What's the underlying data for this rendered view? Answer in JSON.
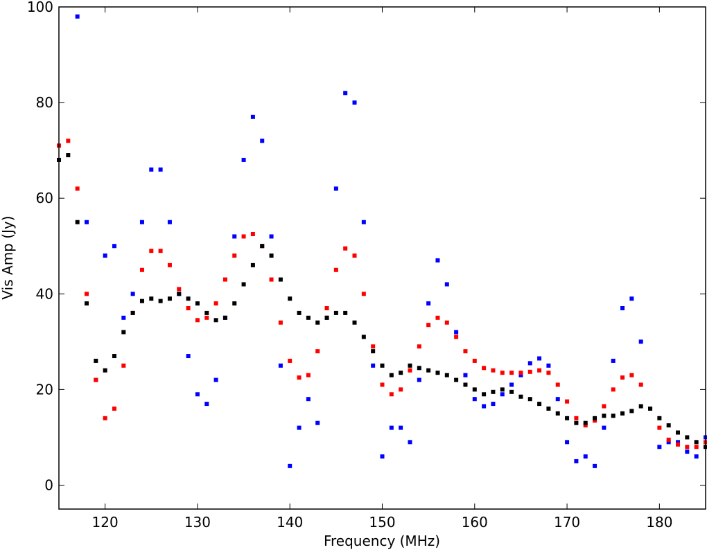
{
  "chart_data": {
    "type": "scatter",
    "xlabel": "Frequency (MHz)",
    "ylabel": "Vis Amp (Jy)",
    "xlim": [
      115,
      185
    ],
    "ylim": [
      -5,
      100
    ],
    "xticks": [
      120,
      130,
      140,
      150,
      160,
      170,
      180
    ],
    "yticks": [
      0,
      20,
      40,
      60,
      80,
      100
    ],
    "x": [
      115,
      116,
      117,
      118,
      119,
      120,
      121,
      122,
      123,
      124,
      125,
      126,
      127,
      128,
      129,
      130,
      131,
      132,
      133,
      134,
      135,
      136,
      137,
      138,
      139,
      140,
      141,
      142,
      143,
      144,
      145,
      146,
      147,
      148,
      149,
      150,
      151,
      152,
      153,
      154,
      155,
      156,
      157,
      158,
      159,
      160,
      161,
      162,
      163,
      164,
      165,
      166,
      167,
      168,
      169,
      170,
      171,
      172,
      173,
      174,
      175,
      176,
      177,
      178,
      179,
      180,
      181,
      182,
      183,
      184,
      185
    ],
    "series": [
      {
        "color": "#0000ff",
        "values": [
          null,
          null,
          98,
          55,
          22,
          48,
          50,
          35,
          40,
          55,
          66,
          66,
          55,
          40,
          27,
          19,
          17,
          22,
          35,
          52,
          68,
          77,
          72,
          52,
          25,
          4,
          12,
          18,
          13,
          35,
          62,
          82,
          80,
          55,
          25,
          6,
          12,
          12,
          9,
          22,
          38,
          47,
          42,
          32,
          23,
          18,
          16.5,
          17,
          19,
          21,
          23,
          25.5,
          26.5,
          25,
          18,
          9,
          5,
          6,
          4,
          12,
          26,
          37,
          39,
          30,
          16,
          8,
          9,
          9,
          7,
          6,
          10
        ]
      },
      {
        "color": "#ff0000",
        "values": [
          71,
          72,
          62,
          40,
          22,
          14,
          16,
          25,
          36,
          45,
          49,
          49,
          46,
          41,
          37,
          34.5,
          35,
          38,
          43,
          48,
          52,
          52.5,
          50,
          43,
          34,
          26,
          22.5,
          23,
          28,
          37,
          45,
          49.5,
          48,
          40,
          29,
          21,
          19,
          20,
          24,
          29,
          33.5,
          35,
          34,
          31,
          28,
          26,
          24.5,
          24,
          23.5,
          23.5,
          23.5,
          23.7,
          24,
          23.5,
          21,
          17.5,
          14,
          12.5,
          13.5,
          16.5,
          20,
          22.5,
          23,
          21,
          16,
          12,
          9.5,
          8.5,
          8,
          8,
          9
        ]
      },
      {
        "color": "#000000",
        "values": [
          68,
          69,
          55,
          38,
          26,
          24,
          27,
          32,
          36,
          38.5,
          39,
          38.5,
          39,
          40,
          39,
          38,
          36,
          34.5,
          35,
          38,
          42,
          46,
          50,
          48,
          43,
          39,
          36,
          35,
          34,
          35,
          36,
          36,
          34,
          31,
          28,
          25,
          23,
          23.5,
          25,
          24.5,
          24,
          23.5,
          23,
          22,
          21,
          20,
          19,
          19.5,
          20,
          19.5,
          18.5,
          18,
          17,
          16,
          15,
          14,
          13,
          13,
          14,
          14.5,
          14.5,
          15,
          15.5,
          16.5,
          16,
          14,
          12.5,
          11,
          10,
          9,
          8
        ]
      }
    ]
  }
}
